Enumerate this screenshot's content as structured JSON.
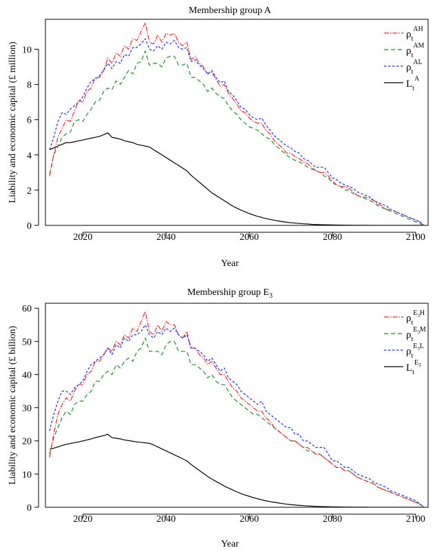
{
  "chart_data": [
    {
      "type": "line",
      "title": "Membership group A",
      "xlabel": "Year",
      "ylabel": "Liability and economic capital (£ million)",
      "xlim": [
        2011,
        2103
      ],
      "ylim": [
        0,
        11.7
      ],
      "xticks": [
        2020,
        2040,
        2060,
        2080,
        2100
      ],
      "yticks": [
        0,
        2,
        4,
        6,
        8,
        10
      ],
      "grid": false,
      "legend_position": "top-right",
      "x": [
        2012,
        2013,
        2014,
        2015,
        2016,
        2017,
        2018,
        2019,
        2020,
        2021,
        2022,
        2023,
        2024,
        2025,
        2026,
        2027,
        2028,
        2029,
        2030,
        2031,
        2032,
        2033,
        2034,
        2035,
        2036,
        2037,
        2038,
        2039,
        2040,
        2041,
        2042,
        2043,
        2044,
        2045,
        2046,
        2047,
        2048,
        2049,
        2050,
        2051,
        2052,
        2053,
        2054,
        2055,
        2056,
        2057,
        2058,
        2059,
        2060,
        2061,
        2062,
        2063,
        2064,
        2065,
        2066,
        2067,
        2068,
        2069,
        2070,
        2071,
        2072,
        2073,
        2074,
        2075,
        2076,
        2077,
        2078,
        2079,
        2080,
        2081,
        2082,
        2083,
        2084,
        2085,
        2086,
        2087,
        2088,
        2089,
        2090,
        2091,
        2092,
        2093,
        2094,
        2095,
        2096,
        2097,
        2098,
        2099,
        2100,
        2101,
        2102
      ],
      "series": [
        {
          "name": "ρtAH",
          "legend": {
            "base": "ρ",
            "sub": "t",
            "sup": "AH",
            "sup_sub": ""
          },
          "color": "#e8262b",
          "dash": "7 2 1.5 2",
          "values": [
            2.8,
            4.0,
            5.0,
            5.5,
            6.0,
            5.9,
            6.5,
            7.1,
            7.0,
            7.6,
            7.8,
            8.4,
            8.4,
            8.8,
            9.5,
            9.2,
            9.8,
            9.6,
            10.2,
            10.0,
            10.6,
            10.5,
            11.0,
            11.5,
            10.4,
            10.3,
            10.8,
            10.4,
            10.9,
            10.8,
            10.9,
            10.4,
            10.2,
            10.4,
            9.4,
            9.6,
            9.2,
            9.0,
            8.6,
            8.7,
            8.3,
            7.9,
            8.0,
            7.5,
            7.2,
            6.9,
            6.5,
            6.4,
            6.1,
            5.9,
            5.8,
            5.8,
            5.4,
            5.2,
            4.8,
            4.6,
            4.4,
            4.1,
            4.1,
            3.9,
            3.8,
            3.6,
            3.5,
            3.3,
            3.1,
            3.0,
            3.0,
            2.8,
            2.5,
            2.3,
            2.2,
            2.2,
            2.1,
            1.9,
            1.7,
            1.6,
            1.6,
            1.5,
            1.4,
            1.2,
            1.1,
            0.9,
            0.9,
            0.8,
            0.7,
            0.6,
            0.5,
            0.4,
            0.3,
            0.2,
            0.0
          ]
        },
        {
          "name": "ρtAM",
          "legend": {
            "base": "ρ",
            "sub": "t",
            "sup": "AM",
            "sup_sub": ""
          },
          "color": "#1f8a2f",
          "dash": "6 4",
          "values": [
            2.9,
            4.0,
            4.5,
            5.0,
            5.2,
            5.3,
            5.9,
            6.0,
            5.9,
            6.3,
            6.6,
            7.0,
            7.1,
            7.6,
            7.8,
            7.7,
            8.2,
            8.0,
            8.4,
            8.8,
            8.6,
            9.2,
            9.3,
            9.9,
            9.1,
            9.2,
            9.2,
            9.0,
            9.5,
            9.6,
            9.6,
            9.1,
            9.1,
            9.2,
            8.4,
            8.4,
            8.2,
            8.0,
            7.6,
            7.8,
            7.5,
            7.3,
            7.2,
            6.8,
            6.5,
            6.3,
            6.0,
            5.8,
            5.6,
            5.5,
            5.4,
            5.2,
            5.0,
            4.9,
            4.6,
            4.4,
            4.2,
            4.0,
            3.8,
            3.7,
            3.6,
            3.5,
            3.3,
            3.2,
            3.1,
            3.0,
            2.8,
            2.7,
            2.4,
            2.3,
            2.2,
            2.0,
            2.0,
            1.8,
            1.7,
            1.6,
            1.5,
            1.4,
            1.3,
            1.1,
            1.0,
            0.9,
            0.8,
            0.7,
            0.6,
            0.5,
            0.4,
            0.3,
            0.2,
            0.1,
            0.0
          ]
        },
        {
          "name": "ρtAL",
          "legend": {
            "base": "ρ",
            "sub": "t",
            "sup": "AL",
            "sup_sub": ""
          },
          "color": "#1f2ee0",
          "dash": "3.5 2.5",
          "values": [
            4.3,
            5.0,
            5.9,
            6.4,
            6.3,
            6.6,
            6.8,
            7.0,
            7.3,
            7.8,
            8.2,
            8.3,
            8.5,
            8.8,
            9.2,
            8.9,
            9.3,
            9.2,
            9.7,
            9.6,
            10.1,
            10.1,
            10.3,
            10.6,
            10.0,
            9.9,
            10.2,
            10.0,
            10.4,
            10.3,
            10.5,
            10.1,
            10.0,
            10.1,
            9.3,
            9.4,
            9.1,
            8.9,
            8.6,
            8.8,
            8.4,
            8.1,
            8.2,
            7.6,
            7.4,
            7.1,
            6.7,
            6.6,
            6.3,
            6.1,
            6.0,
            6.1,
            5.7,
            5.4,
            5.1,
            4.9,
            4.7,
            4.5,
            4.4,
            4.2,
            4.1,
            3.8,
            3.7,
            3.5,
            3.3,
            3.3,
            3.3,
            3.0,
            2.7,
            2.6,
            2.4,
            2.3,
            2.2,
            2.1,
            1.9,
            1.8,
            1.7,
            1.6,
            1.4,
            1.3,
            1.2,
            1.1,
            0.9,
            0.8,
            0.7,
            0.6,
            0.5,
            0.4,
            0.3,
            0.2,
            0.0
          ]
        },
        {
          "name": "LtA",
          "legend": {
            "base": "L",
            "sub": "t",
            "sup": "A",
            "sup_sub": ""
          },
          "color": "#000000",
          "dash": "",
          "values": [
            4.3,
            4.4,
            4.5,
            4.6,
            4.7,
            4.7,
            4.75,
            4.8,
            4.85,
            4.9,
            4.95,
            5.0,
            5.05,
            5.15,
            5.25,
            5.0,
            4.95,
            4.9,
            4.8,
            4.75,
            4.7,
            4.6,
            4.55,
            4.5,
            4.45,
            4.3,
            4.15,
            4.0,
            3.85,
            3.7,
            3.55,
            3.4,
            3.25,
            3.1,
            2.85,
            2.65,
            2.45,
            2.25,
            2.05,
            1.85,
            1.7,
            1.55,
            1.4,
            1.25,
            1.1,
            0.98,
            0.87,
            0.77,
            0.67,
            0.59,
            0.51,
            0.45,
            0.39,
            0.34,
            0.29,
            0.25,
            0.21,
            0.18,
            0.15,
            0.13,
            0.11,
            0.09,
            0.08,
            0.06,
            0.05,
            0.04,
            0.035,
            0.03,
            0.025,
            0.02,
            0.015,
            0.012,
            0.01,
            0.008,
            0.006,
            0.005,
            0.004,
            0.003,
            0.002,
            0.002,
            0.001,
            0.001,
            0.001,
            0.0,
            0.0,
            0.0,
            0.0,
            0.0,
            0.0,
            0.0,
            0.0
          ]
        }
      ]
    },
    {
      "type": "line",
      "title": "Membership group E3",
      "title_parts": {
        "main": "Membership group E",
        "sub": "3"
      },
      "xlabel": "Year",
      "ylabel": "Liability and economic capital (£ billion)",
      "xlim": [
        2011,
        2103
      ],
      "ylim": [
        0,
        61.5
      ],
      "xticks": [
        2020,
        2040,
        2060,
        2080,
        2100
      ],
      "yticks": [
        0,
        10,
        20,
        30,
        40,
        50,
        60
      ],
      "grid": false,
      "legend_position": "top-right",
      "x": [
        2012,
        2013,
        2014,
        2015,
        2016,
        2017,
        2018,
        2019,
        2020,
        2021,
        2022,
        2023,
        2024,
        2025,
        2026,
        2027,
        2028,
        2029,
        2030,
        2031,
        2032,
        2033,
        2034,
        2035,
        2036,
        2037,
        2038,
        2039,
        2040,
        2041,
        2042,
        2043,
        2044,
        2045,
        2046,
        2047,
        2048,
        2049,
        2050,
        2051,
        2052,
        2053,
        2054,
        2055,
        2056,
        2057,
        2058,
        2059,
        2060,
        2061,
        2062,
        2063,
        2064,
        2065,
        2066,
        2067,
        2068,
        2069,
        2070,
        2071,
        2072,
        2073,
        2074,
        2075,
        2076,
        2077,
        2078,
        2079,
        2080,
        2081,
        2082,
        2083,
        2084,
        2085,
        2086,
        2087,
        2088,
        2089,
        2090,
        2091,
        2092,
        2093,
        2094,
        2095,
        2096,
        2097,
        2098,
        2099,
        2100,
        2101,
        2102
      ],
      "series": [
        {
          "name": "ρtE3H",
          "legend": {
            "base": "ρ",
            "sub": "t",
            "sup": "E",
            "sup_sub": "3",
            "sup_tail": "H"
          },
          "color": "#e8262b",
          "dash": "7 2 1.5 2",
          "values": [
            15,
            22,
            28,
            31,
            33,
            32,
            35,
            37,
            37,
            40,
            41,
            44,
            44,
            46,
            48,
            47,
            50,
            49,
            52,
            51,
            54,
            53,
            56,
            59,
            53,
            52,
            55,
            53,
            56,
            55,
            55,
            52,
            51,
            53,
            48,
            48,
            46,
            45,
            43,
            44,
            42,
            40,
            40,
            38,
            36,
            35,
            33,
            32,
            31,
            30,
            29,
            29,
            27,
            26,
            24,
            23,
            22,
            21,
            20,
            20,
            19,
            18,
            18,
            17,
            16,
            16,
            15,
            14,
            13,
            12,
            12,
            11,
            11,
            10,
            9,
            8.5,
            8,
            7.5,
            7,
            6,
            5.5,
            5,
            4.5,
            4,
            3.5,
            3,
            2.5,
            2,
            1.5,
            1,
            0
          ]
        },
        {
          "name": "ρtE3M",
          "legend": {
            "base": "ρ",
            "sub": "t",
            "sup": "E",
            "sup_sub": "3",
            "sup_tail": "M"
          },
          "color": "#1f8a2f",
          "dash": "6 4",
          "values": [
            16,
            21,
            24,
            27,
            29,
            28,
            31,
            32,
            32,
            34,
            35,
            38,
            38,
            40,
            41,
            40,
            43,
            42,
            44,
            45,
            44,
            47,
            48,
            51,
            47,
            47,
            47,
            46,
            49,
            50,
            50,
            47,
            47,
            47,
            43,
            43,
            42,
            41,
            39,
            40,
            38,
            37,
            37,
            35,
            33,
            32,
            31,
            30,
            29,
            28,
            28,
            27,
            26,
            25,
            24,
            23,
            22,
            21,
            20,
            20,
            19,
            18,
            17,
            17,
            16,
            16,
            15,
            14,
            13,
            12,
            12,
            11,
            11,
            10,
            9,
            8.5,
            8,
            7.5,
            7,
            6,
            5.5,
            5,
            4.5,
            4,
            3.5,
            3,
            2.5,
            2,
            1.5,
            1,
            0
          ]
        },
        {
          "name": "ρtE3L",
          "legend": {
            "base": "ρ",
            "sub": "t",
            "sup": "E",
            "sup_sub": "3",
            "sup_tail": "L"
          },
          "color": "#1f2ee0",
          "dash": "3.5 2.5",
          "values": [
            23,
            28,
            32,
            35,
            35,
            34,
            36,
            37,
            38,
            41,
            43,
            44,
            45,
            46,
            48,
            46,
            49,
            48,
            51,
            50,
            52,
            52,
            53,
            55,
            52,
            51,
            53,
            52,
            54,
            53,
            54,
            52,
            51,
            52,
            48,
            48,
            47,
            46,
            44,
            45,
            43,
            41,
            42,
            39,
            38,
            37,
            35,
            34,
            33,
            32,
            31,
            32,
            29,
            28,
            27,
            26,
            25,
            24,
            24,
            22,
            22,
            20,
            20,
            19,
            18,
            18,
            18,
            16,
            14,
            14,
            13,
            12,
            12,
            11,
            10,
            9.5,
            9,
            8.5,
            7.5,
            7,
            6.5,
            6,
            5,
            4.5,
            4,
            3.5,
            3,
            2.5,
            2,
            1,
            0
          ]
        },
        {
          "name": "LtE3",
          "legend": {
            "base": "L",
            "sub": "t",
            "sup": "E",
            "sup_sub": "3",
            "sup_tail": ""
          },
          "color": "#000000",
          "dash": "",
          "values": [
            17.5,
            17.8,
            18.2,
            18.6,
            19.0,
            19.2,
            19.5,
            19.7,
            20.0,
            20.3,
            20.6,
            21.0,
            21.3,
            21.6,
            22.0,
            21.0,
            20.8,
            20.6,
            20.3,
            20.1,
            19.9,
            19.7,
            19.6,
            19.4,
            19.3,
            18.8,
            18.2,
            17.6,
            17.0,
            16.4,
            15.8,
            15.2,
            14.6,
            14.0,
            12.9,
            12.0,
            11.1,
            10.2,
            9.3,
            8.5,
            7.8,
            7.1,
            6.4,
            5.8,
            5.2,
            4.65,
            4.15,
            3.7,
            3.3,
            2.9,
            2.55,
            2.25,
            1.95,
            1.7,
            1.5,
            1.3,
            1.1,
            0.95,
            0.8,
            0.68,
            0.57,
            0.48,
            0.4,
            0.33,
            0.27,
            0.22,
            0.18,
            0.15,
            0.12,
            0.1,
            0.08,
            0.06,
            0.05,
            0.04,
            0.03,
            0.025,
            0.02,
            0.015,
            0.01,
            0.008,
            0.006,
            0.004,
            0.003,
            0.002,
            0.001,
            0.0,
            0.0,
            0.0,
            0.0,
            0.0,
            0.0
          ]
        }
      ]
    }
  ]
}
